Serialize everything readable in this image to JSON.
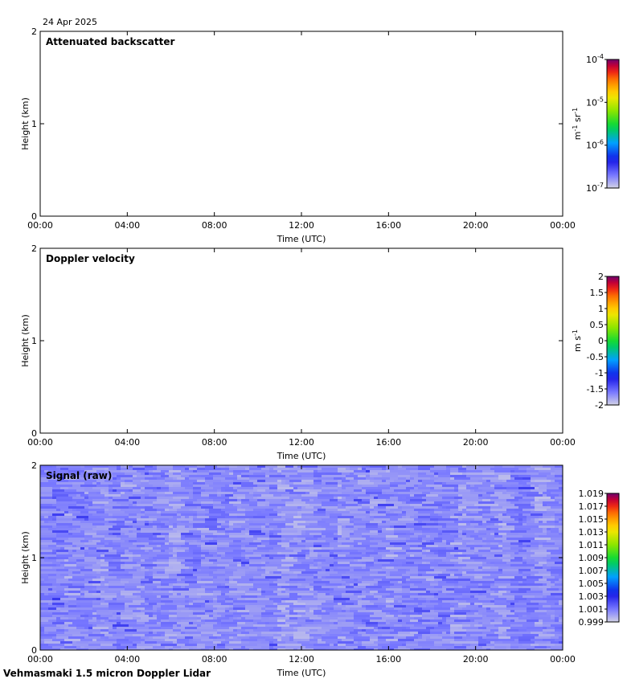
{
  "date": "24 Apr 2025",
  "footer": "Vehmasmaki 1.5 micron Doppler Lidar",
  "chart_data": [
    {
      "type": "heatmap",
      "title": "Attenuated backscatter",
      "xlabel": "Time (UTC)",
      "ylabel": "Height (km)",
      "x_ticks": [
        "00:00",
        "04:00",
        "08:00",
        "12:00",
        "16:00",
        "20:00",
        "00:00"
      ],
      "xlim": [
        "00:00",
        "24:00"
      ],
      "y_ticks": [
        "0",
        "1",
        "2"
      ],
      "ylim": [
        0,
        2
      ],
      "data": "empty",
      "colorbar": {
        "scale": "log",
        "range": [
          1e-07,
          0.0001
        ],
        "tick_bases": [
          "10",
          "10",
          "10",
          "10"
        ],
        "tick_exponents": [
          "-7",
          "-6",
          "-5",
          "-4"
        ],
        "unit_parts": [
          "m",
          "-1",
          " sr",
          "-1"
        ]
      }
    },
    {
      "type": "heatmap",
      "title": "Doppler velocity",
      "xlabel": "Time (UTC)",
      "ylabel": "Height (km)",
      "x_ticks": [
        "00:00",
        "04:00",
        "08:00",
        "12:00",
        "16:00",
        "20:00",
        "00:00"
      ],
      "xlim": [
        "00:00",
        "24:00"
      ],
      "y_ticks": [
        "0",
        "1",
        "2"
      ],
      "ylim": [
        0,
        2
      ],
      "data": "empty",
      "colorbar": {
        "scale": "linear",
        "range": [
          -2,
          2
        ],
        "ticks": [
          "-2",
          "-1.5",
          "-1",
          "-0.5",
          "0",
          "0.5",
          "1",
          "1.5",
          "2"
        ],
        "unit_parts": [
          "m s",
          "-1"
        ]
      }
    },
    {
      "type": "heatmap",
      "title": "Signal (raw)",
      "xlabel": "Time (UTC)",
      "ylabel": "Height (km)",
      "x_ticks": [
        "00:00",
        "04:00",
        "08:00",
        "12:00",
        "16:00",
        "20:00",
        "00:00"
      ],
      "xlim": [
        "00:00",
        "24:00"
      ],
      "y_ticks": [
        "0",
        "1",
        "2"
      ],
      "ylim": [
        0,
        2
      ],
      "data": "noise-field with values mostly between 0.999 and 1.003",
      "colorbar": {
        "scale": "linear",
        "range": [
          0.999,
          1.02
        ],
        "ticks": [
          "0.999",
          "1.001",
          "1.003",
          "1.005",
          "1.007",
          "1.009",
          "1.011",
          "1.013",
          "1.015",
          "1.017",
          "1.019"
        ],
        "unit_parts": []
      }
    }
  ]
}
